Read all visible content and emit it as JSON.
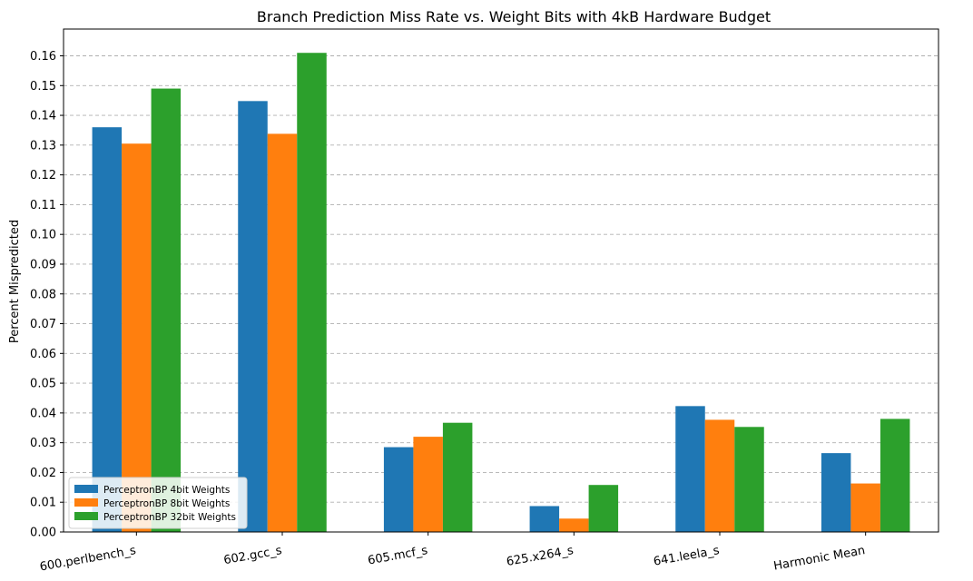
{
  "chart_data": {
    "type": "bar",
    "title": "Branch Prediction Miss Rate vs. Weight Bits with 4kB Hardware Budget",
    "xlabel": "",
    "ylabel": "Percent Mispredicted",
    "ylim": [
      0,
      0.169
    ],
    "yticks": [
      "0.00",
      "0.01",
      "0.02",
      "0.03",
      "0.04",
      "0.05",
      "0.06",
      "0.07",
      "0.08",
      "0.09",
      "0.10",
      "0.11",
      "0.12",
      "0.13",
      "0.14",
      "0.15",
      "0.16"
    ],
    "grid": "horizontal dashed",
    "legend_position": "lower-left",
    "categories": [
      "600.perlbench_s",
      "602.gcc_s",
      "605.mcf_s",
      "625.x264_s",
      "641.leela_s",
      "Harmonic Mean"
    ],
    "series": [
      {
        "name": "PerceptronBP 4bit Weights",
        "color": "#1f77b4",
        "values": [
          0.136,
          0.1448,
          0.0285,
          0.0087,
          0.0423,
          0.0265
        ]
      },
      {
        "name": "PerceptronBP 8bit Weights",
        "color": "#ff7f0e",
        "values": [
          0.1305,
          0.1338,
          0.032,
          0.0045,
          0.0377,
          0.0163
        ]
      },
      {
        "name": "PerceptronBP 32bit Weights",
        "color": "#2ca02c",
        "values": [
          0.149,
          0.161,
          0.0367,
          0.0158,
          0.0353,
          0.038
        ]
      }
    ]
  }
}
